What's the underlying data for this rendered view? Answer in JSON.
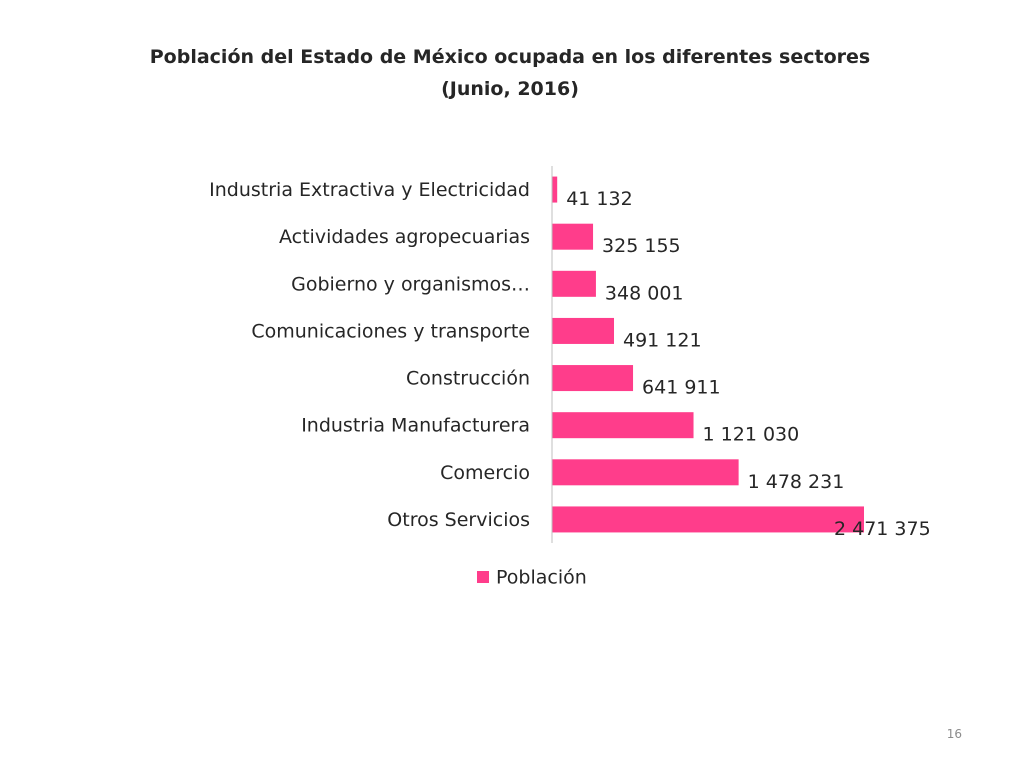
{
  "slide": {
    "title_line1": "Población del Estado de México ocupada en los diferentes sectores",
    "title_line2": "(Junio, 2016)",
    "page_number": "16"
  },
  "chart_data": {
    "type": "bar",
    "orientation": "horizontal",
    "categories": [
      "Industria Extractiva y Electricidad",
      "Actividades agropecuarias",
      "Gobierno y organismos…",
      "Comunicaciones y transporte",
      "Construcción",
      "Industria Manufacturera",
      "Comercio",
      "Otros Servicios"
    ],
    "series": [
      {
        "name": "Población",
        "values": [
          41132,
          325155,
          348001,
          491121,
          641911,
          1121030,
          1478231,
          2471375
        ],
        "labels": [
          "41 132",
          "325 155",
          "348 001",
          "491 121",
          "641 911",
          "1 121 030",
          "1 478 231",
          "2 471 375"
        ],
        "color": "#ff3d8b"
      }
    ],
    "title": "Población del Estado de México ocupada en los diferentes sectores (Junio, 2016)",
    "xlabel": "",
    "ylabel": "",
    "grid": false,
    "legend_position": "bottom",
    "axis_color": "#bfbfbf"
  }
}
